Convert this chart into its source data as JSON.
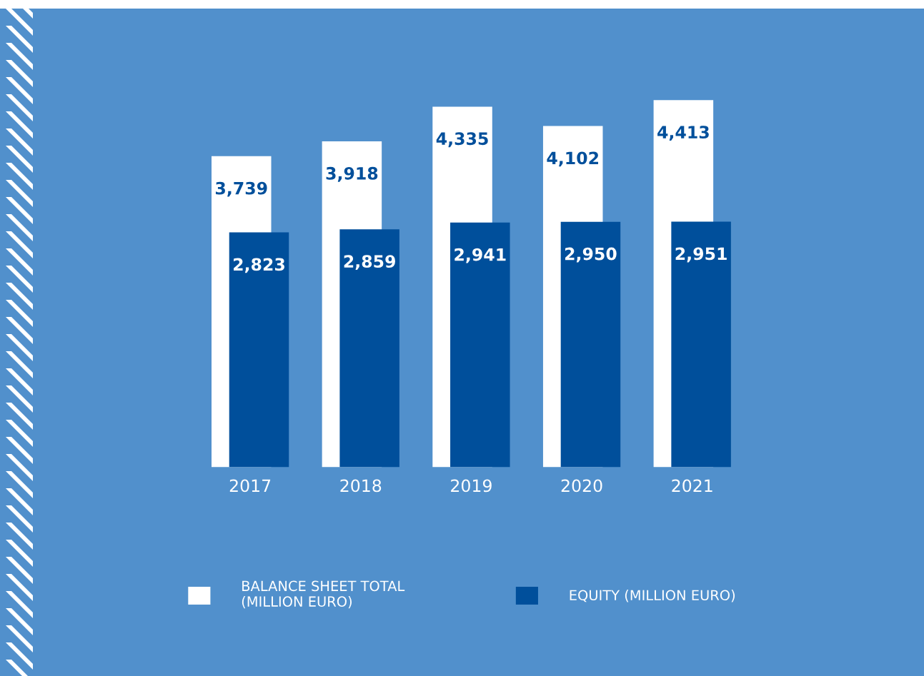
{
  "chart_data": {
    "type": "bar",
    "categories": [
      "2017",
      "2018",
      "2019",
      "2020",
      "2021"
    ],
    "series": [
      {
        "name": "BALANCE SHEET TOTAL\n(MILLION EURO)",
        "color": "#ffffff",
        "values": [
          3739,
          3918,
          4335,
          4102,
          4413
        ],
        "value_labels": [
          "3,739",
          "3,918",
          "4,335",
          "4,102",
          "4,413"
        ]
      },
      {
        "name": "EQUITY (MILLION EURO)",
        "color": "#004f9b",
        "values": [
          2823,
          2859,
          2941,
          2950,
          2951
        ],
        "value_labels": [
          "2,823",
          "2,859",
          "2,941",
          "2,950",
          "2,951"
        ]
      }
    ],
    "legend": "bottom",
    "grid": false
  }
}
